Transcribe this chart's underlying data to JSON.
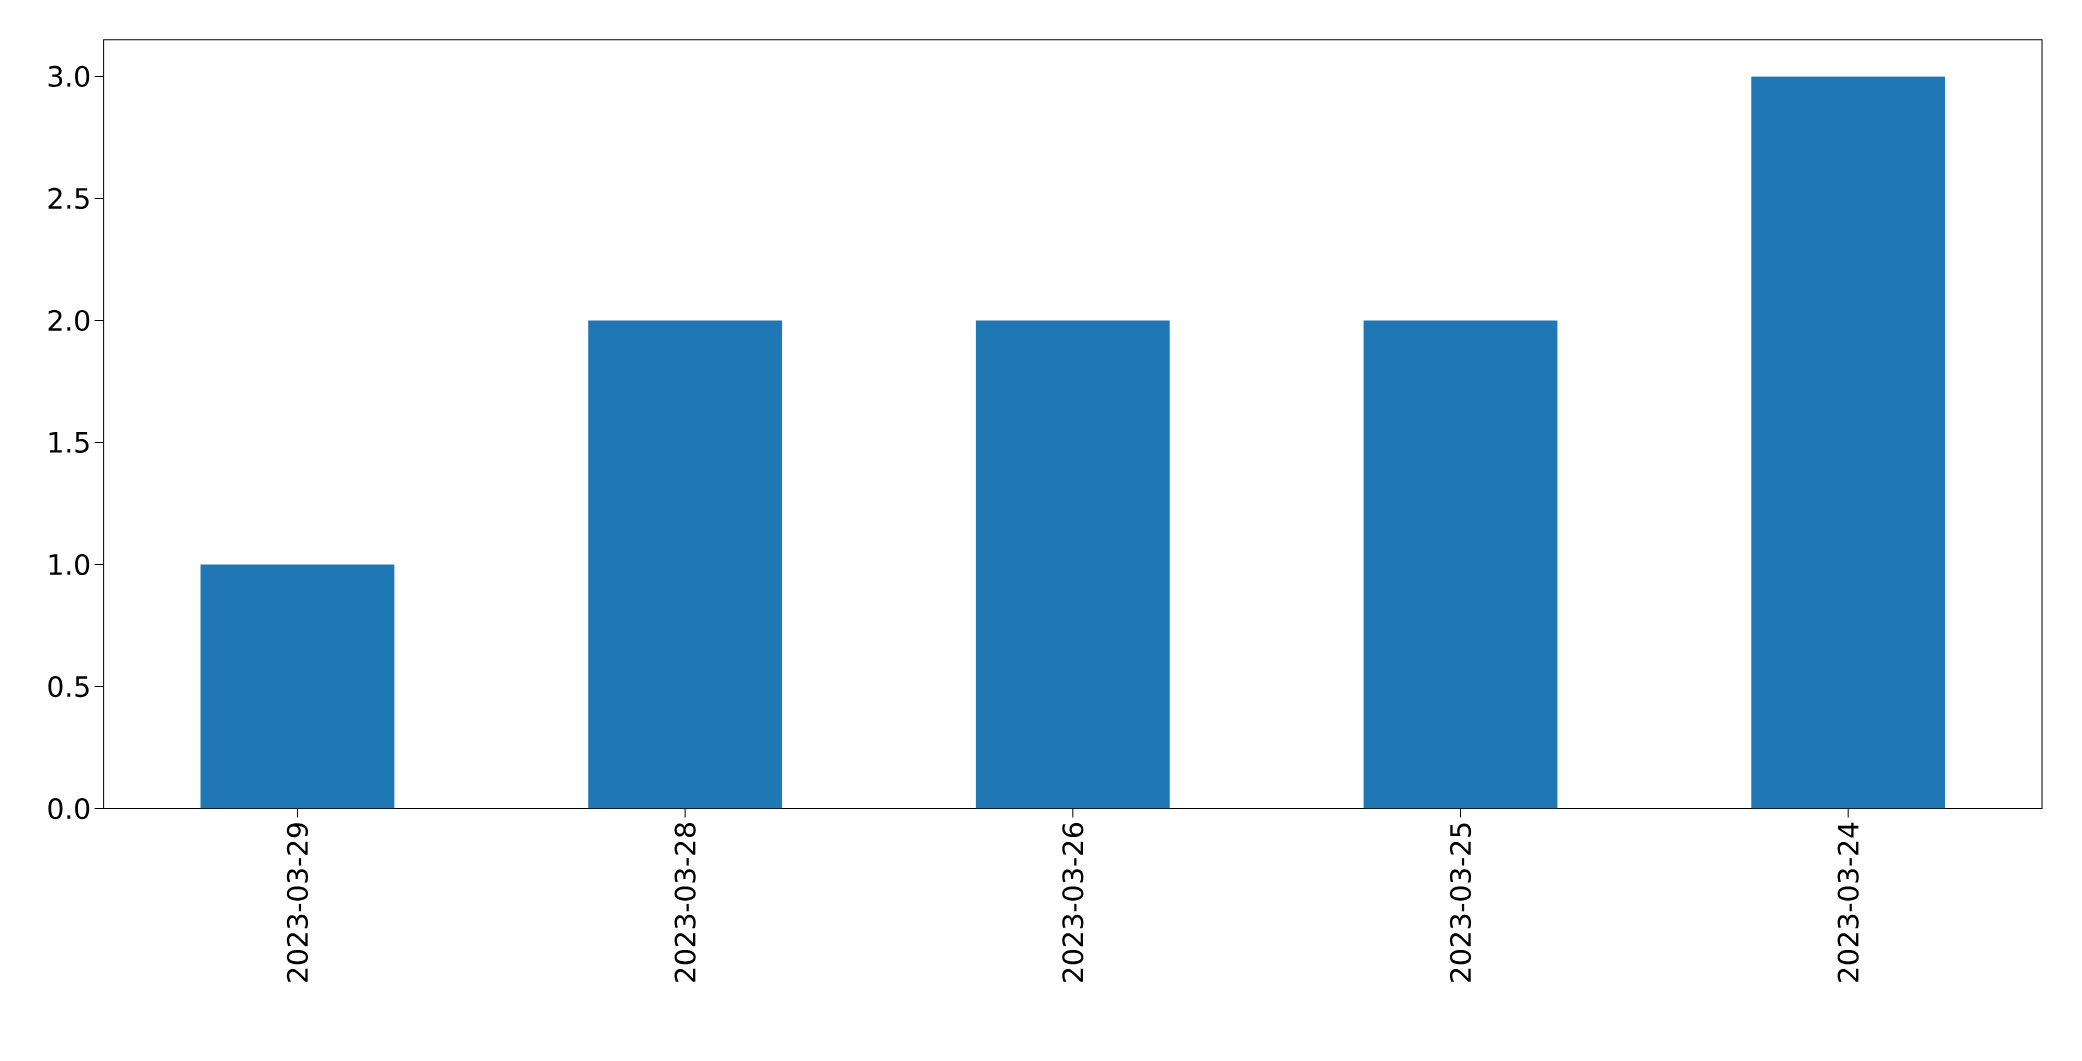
{
  "chart_data": {
    "type": "bar",
    "categories": [
      "2023-03-29",
      "2023-03-28",
      "2023-03-26",
      "2023-03-25",
      "2023-03-24"
    ],
    "values": [
      1,
      2,
      2,
      2,
      3
    ],
    "color": "#1f77b4",
    "ylim": [
      0,
      3.15
    ],
    "yticks": [
      {
        "value": 0,
        "label": "0.0"
      },
      {
        "value": 0.5,
        "label": "0.5"
      },
      {
        "value": 1,
        "label": "1.0"
      },
      {
        "value": 1.5,
        "label": "1.5"
      },
      {
        "value": 2,
        "label": "2.0"
      },
      {
        "value": 2.5,
        "label": "2.5"
      },
      {
        "value": 3,
        "label": "3.0"
      }
    ],
    "grid": false
  }
}
